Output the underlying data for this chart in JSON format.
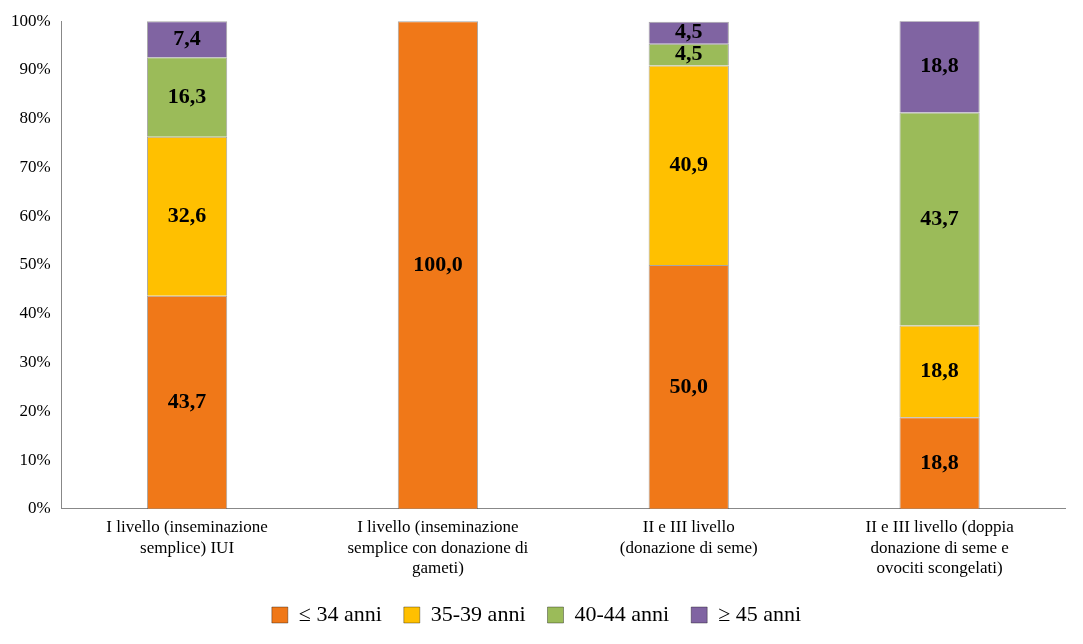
{
  "chart_data": {
    "type": "bar",
    "stacked": true,
    "categories": [
      "I livello (inseminazione semplice) IUI",
      "I livello (inseminazione semplice con donazione di gameti)",
      "II e III livello (donazione di seme)",
      "II e III livello (doppia donazione di seme e ovociti scongelati)"
    ],
    "series": [
      {
        "name": "≤ 34 anni",
        "color": "#f07818",
        "values": [
          43.7,
          100,
          50,
          18.8
        ],
        "value_labels": [
          "43,7",
          "100,0",
          "50,0",
          "18,8"
        ]
      },
      {
        "name": "35-39 anni",
        "color": "#ffc000",
        "values": [
          32.6,
          null,
          40.9,
          18.8
        ],
        "value_labels": [
          "32,6",
          null,
          "40,9",
          "18,8"
        ]
      },
      {
        "name": "40-44 anni",
        "color": "#9bbb59",
        "values": [
          16.3,
          null,
          4.5,
          43.7
        ],
        "value_labels": [
          "16,3",
          null,
          "4,5",
          "43,7"
        ]
      },
      {
        "name": "≥ 45 anni",
        "color": "#8064a2",
        "values": [
          7.4,
          null,
          4.5,
          18.8
        ],
        "value_labels": [
          "7,4",
          null,
          "4,5",
          "18,8"
        ]
      }
    ],
    "ylim": [
      0,
      100
    ],
    "yticks": [
      {
        "value": 0,
        "label": "0%"
      },
      {
        "value": 10,
        "label": "10%"
      },
      {
        "value": 20,
        "label": "20%"
      },
      {
        "value": 30,
        "label": "30%"
      },
      {
        "value": 40,
        "label": "40%"
      },
      {
        "value": 50,
        "label": "50%"
      },
      {
        "value": 60,
        "label": "60%"
      },
      {
        "value": 70,
        "label": "70%"
      },
      {
        "value": 80,
        "label": "80%"
      },
      {
        "value": 90,
        "label": "90%"
      },
      {
        "value": 100,
        "label": "100%"
      }
    ],
    "grid": false,
    "legend": "bottom"
  }
}
